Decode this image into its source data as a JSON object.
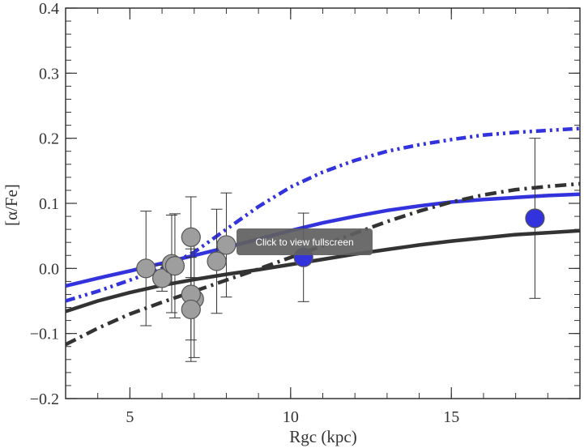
{
  "chart_data": {
    "type": "line",
    "title": "",
    "xlabel": "Rgc (kpc)",
    "ylabel": "[α/Fe]",
    "xlim": [
      3,
      19
    ],
    "ylim": [
      -0.2,
      0.4
    ],
    "x_ticks": [
      5,
      10,
      15
    ],
    "x_tick_labels": [
      "5",
      "10",
      "15"
    ],
    "y_ticks": [
      -0.2,
      -0.1,
      0.0,
      0.1,
      0.2,
      0.3,
      0.4
    ],
    "y_tick_labels": [
      "−0.2",
      "−0.1",
      "0.0",
      "0.1",
      "0.2",
      "0.3",
      "0.4"
    ],
    "grid": false,
    "series": [
      {
        "kind": "line",
        "style": "solid",
        "color": "#3333dd",
        "x": [
          3,
          4,
          5,
          6,
          7,
          8,
          9,
          10,
          11,
          12,
          13,
          14,
          15,
          16,
          17,
          18,
          19
        ],
        "y": [
          -0.027,
          -0.015,
          -0.004,
          0.008,
          0.02,
          0.032,
          0.045,
          0.058,
          0.07,
          0.08,
          0.089,
          0.096,
          0.102,
          0.106,
          0.109,
          0.112,
          0.114
        ]
      },
      {
        "kind": "line",
        "style": "dashdotdot",
        "color": "#3333dd",
        "x": [
          3,
          4,
          5,
          6,
          7,
          8,
          9,
          10,
          11,
          12,
          13,
          14,
          15,
          16,
          17,
          18,
          19
        ],
        "y": [
          -0.05,
          -0.035,
          -0.018,
          0.0,
          0.025,
          0.06,
          0.095,
          0.125,
          0.148,
          0.166,
          0.18,
          0.19,
          0.198,
          0.205,
          0.209,
          0.212,
          0.215
        ]
      },
      {
        "kind": "line",
        "style": "solid",
        "color": "#333333",
        "x": [
          3,
          4,
          5,
          6,
          7,
          8,
          9,
          10,
          11,
          12,
          13,
          14,
          15,
          16,
          17,
          18,
          19
        ],
        "y": [
          -0.066,
          -0.05,
          -0.037,
          -0.026,
          -0.017,
          -0.009,
          -0.002,
          0.006,
          0.014,
          0.022,
          0.029,
          0.036,
          0.042,
          0.047,
          0.052,
          0.055,
          0.058
        ]
      },
      {
        "kind": "line",
        "style": "dashdot",
        "color": "#333333",
        "x": [
          3,
          4,
          5,
          6,
          7,
          8,
          9,
          10,
          11,
          12,
          13,
          14,
          15,
          16,
          17,
          18,
          19
        ],
        "y": [
          -0.117,
          -0.092,
          -0.07,
          -0.052,
          -0.035,
          -0.018,
          -0.001,
          0.017,
          0.035,
          0.054,
          0.072,
          0.088,
          0.102,
          0.113,
          0.121,
          0.126,
          0.13
        ]
      },
      {
        "kind": "points",
        "color": "#9e9e9e",
        "points": [
          {
            "x": 5.5,
            "y": 0.0,
            "err": 0.088
          },
          {
            "x": 6.0,
            "y": -0.015,
            "err": 0.02
          },
          {
            "x": 6.3,
            "y": 0.007,
            "err": 0.075
          },
          {
            "x": 6.4,
            "y": 0.004,
            "err": 0.08
          },
          {
            "x": 6.9,
            "y": 0.048,
            "err": 0.062
          },
          {
            "x": 7.0,
            "y": -0.047,
            "err": 0.09
          },
          {
            "x": 6.9,
            "y": -0.04,
            "err": 0.07
          },
          {
            "x": 6.9,
            "y": -0.063,
            "err": 0.08
          },
          {
            "x": 7.7,
            "y": 0.011,
            "err": 0.08
          },
          {
            "x": 8.0,
            "y": 0.036,
            "err": 0.08
          }
        ]
      },
      {
        "kind": "points",
        "color": "#3333dd",
        "points": [
          {
            "x": 10.4,
            "y": 0.017,
            "err": 0.068
          },
          {
            "x": 17.6,
            "y": 0.077,
            "err": 0.123
          }
        ]
      }
    ]
  },
  "overlay": {
    "label": "Click to view fullscreen"
  }
}
